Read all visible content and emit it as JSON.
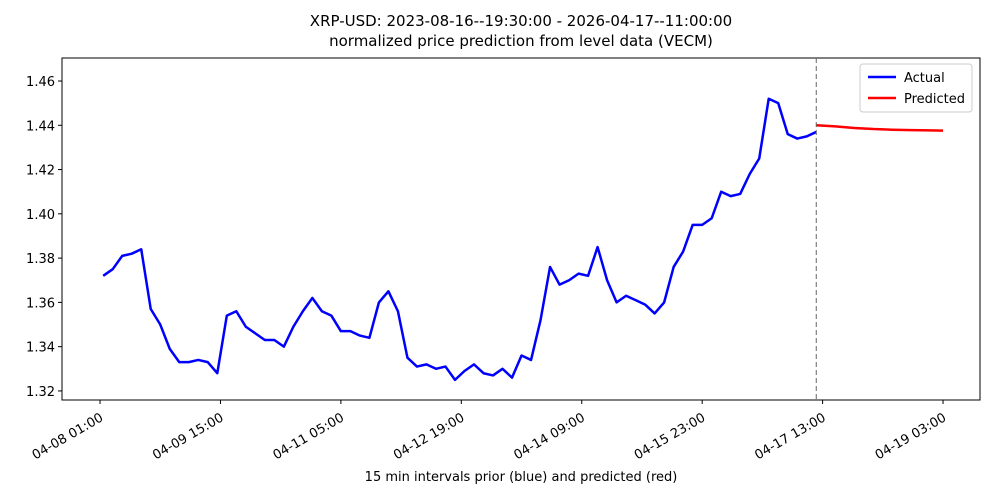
{
  "chart_data": {
    "type": "line",
    "title": "XRP-USD: 2023-08-16--19:30:00 - 2026-04-17--11:00:00",
    "subtitle": "normalized price prediction from level data (VECM)",
    "x_label": "15 min intervals prior (blue) and predicted (red)",
    "xlim": [
      "04-07 13:00",
      "04-19 14:40"
    ],
    "xticks": [
      "04-08 01:00",
      "04-09 15:00",
      "04-11 05:00",
      "04-12 19:00",
      "04-14 09:00",
      "04-15 23:00",
      "04-17 13:00",
      "04-19 03:00"
    ],
    "ylim": [
      1.3159,
      1.4704
    ],
    "yticks": [
      1.32,
      1.34,
      1.36,
      1.38,
      {
        "value": 1.4,
        "label": "1.40"
      },
      1.42,
      1.44,
      1.46
    ],
    "legend": "upper right",
    "forecast_line": true,
    "series": [
      {
        "name": "Actual",
        "color": "#0000ff",
        "x": [
          "04-08 02:00",
          "04-08 05:00",
          "04-08 08:00",
          "04-08 11:00",
          "04-08 14:00",
          "04-08 17:00",
          "04-08 20:00",
          "04-08 23:00",
          "04-09 02:00",
          "04-09 05:00",
          "04-09 08:00",
          "04-09 11:00",
          "04-09 14:00",
          "04-09 17:00",
          "04-09 20:00",
          "04-09 23:00",
          "04-10 02:00",
          "04-10 05:00",
          "04-10 08:00",
          "04-10 11:00",
          "04-10 14:00",
          "04-10 17:00",
          "04-10 20:00",
          "04-10 23:00",
          "04-11 02:00",
          "04-11 05:00",
          "04-11 08:00",
          "04-11 11:00",
          "04-11 14:00",
          "04-11 17:00",
          "04-11 20:00",
          "04-11 23:00",
          "04-12 02:00",
          "04-12 05:00",
          "04-12 08:00",
          "04-12 11:00",
          "04-12 14:00",
          "04-12 17:00",
          "04-12 20:00",
          "04-12 23:00",
          "04-13 02:00",
          "04-13 05:00",
          "04-13 08:00",
          "04-13 11:00",
          "04-13 14:00",
          "04-13 17:00",
          "04-13 20:00",
          "04-13 23:00",
          "04-14 02:00",
          "04-14 05:00",
          "04-14 08:00",
          "04-14 11:00",
          "04-14 14:00",
          "04-14 17:00",
          "04-14 20:00",
          "04-14 23:00",
          "04-15 02:00",
          "04-15 05:00",
          "04-15 08:00",
          "04-15 11:00",
          "04-15 14:00",
          "04-15 17:00",
          "04-15 20:00",
          "04-15 23:00",
          "04-16 02:00",
          "04-16 05:00",
          "04-16 08:00",
          "04-16 11:00",
          "04-16 14:00",
          "04-16 17:00",
          "04-16 20:00",
          "04-16 23:00",
          "04-17 02:00",
          "04-17 05:00",
          "04-17 08:00",
          "04-17 11:00"
        ],
        "values": [
          1.372,
          1.375,
          1.381,
          1.382,
          1.384,
          1.357,
          1.35,
          1.339,
          1.333,
          1.333,
          1.334,
          1.333,
          1.328,
          1.354,
          1.356,
          1.349,
          1.346,
          1.343,
          1.343,
          1.34,
          1.349,
          1.356,
          1.362,
          1.356,
          1.354,
          1.347,
          1.347,
          1.345,
          1.344,
          1.36,
          1.365,
          1.356,
          1.335,
          1.331,
          1.332,
          1.33,
          1.331,
          1.325,
          1.329,
          1.332,
          1.328,
          1.327,
          1.33,
          1.326,
          1.336,
          1.334,
          1.352,
          1.376,
          1.368,
          1.37,
          1.373,
          1.372,
          1.385,
          1.37,
          1.36,
          1.363,
          1.361,
          1.359,
          1.355,
          1.36,
          1.376,
          1.383,
          1.395,
          1.395,
          1.398,
          1.41,
          1.408,
          1.409,
          1.418,
          1.425,
          1.452,
          1.45,
          1.436,
          1.434,
          1.435,
          1.437
        ]
      },
      {
        "name": "Predicted",
        "color": "#ff0000",
        "x": [
          "04-17 11:00",
          "04-17 17:00",
          "04-17 23:00",
          "04-18 05:00",
          "04-18 11:00",
          "04-18 17:00",
          "04-18 23:00",
          "04-19 03:00"
        ],
        "values": [
          1.44,
          1.4395,
          1.4388,
          1.4383,
          1.438,
          1.4378,
          1.4377,
          1.4376
        ]
      }
    ]
  }
}
